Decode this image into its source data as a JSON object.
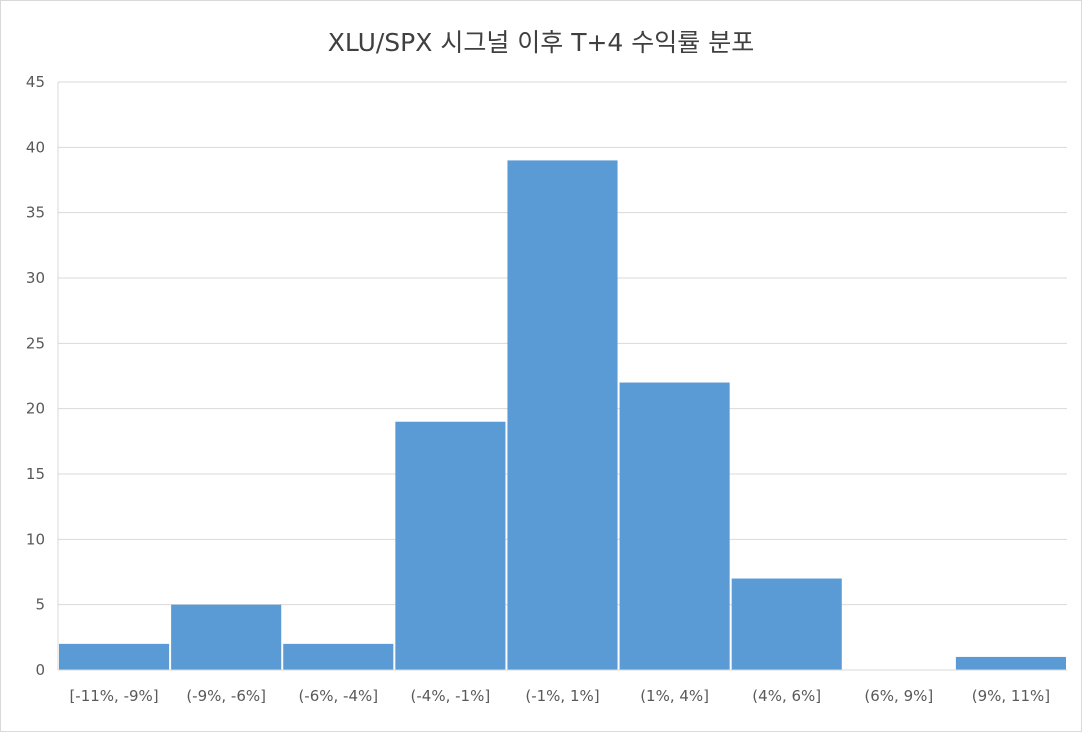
{
  "chart_data": {
    "type": "bar",
    "title": "XLU/SPX 시그널 이후 T+4 수익률 분포",
    "xlabel": "",
    "ylabel": "",
    "categories": [
      "[-11%, -9%]",
      "(-9%, -6%]",
      "(-6%, -4%]",
      "(-4%, -1%]",
      "(-1%, 1%]",
      "(1%, 4%]",
      "(4%, 6%]",
      "(6%, 9%]",
      "(9%, 11%]"
    ],
    "values": [
      2,
      5,
      2,
      19,
      39,
      22,
      7,
      0,
      1
    ],
    "ylim": [
      0,
      45
    ],
    "yticks": [
      "0",
      "5",
      "10",
      "15",
      "20",
      "25",
      "30",
      "35",
      "40",
      "45"
    ],
    "grid": true,
    "legend": "none",
    "colors": {
      "bar": "#5b9bd5",
      "grid": "#d9d9d9",
      "text": "#595959",
      "title": "#404040"
    }
  }
}
